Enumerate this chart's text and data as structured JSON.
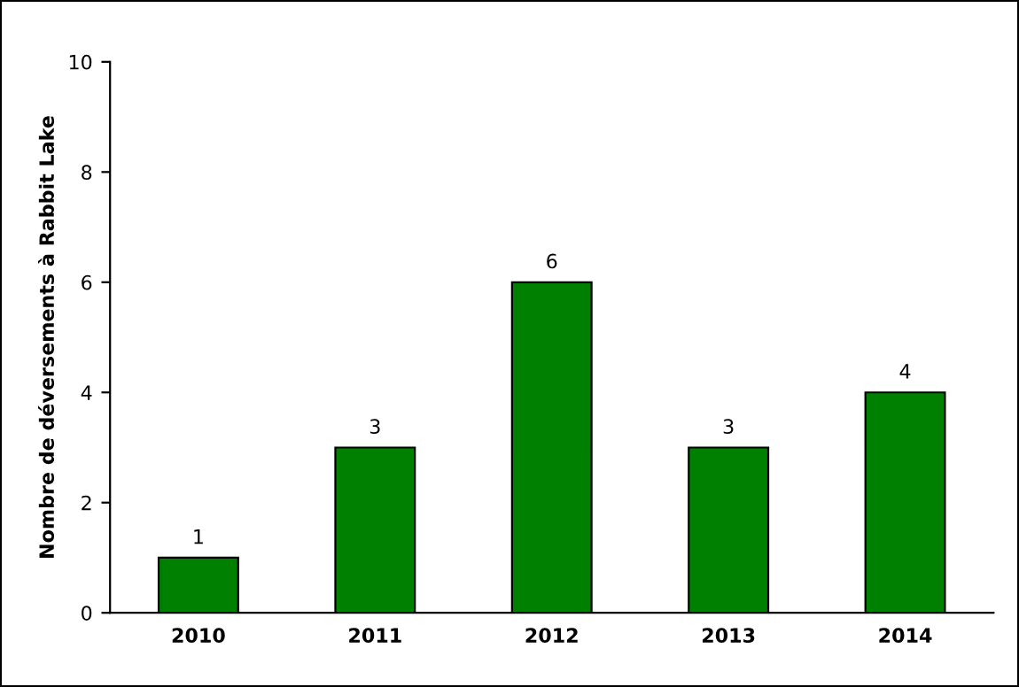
{
  "chart_data": {
    "type": "bar",
    "ylabel": "Nombre de déversements à Rabbit Lake",
    "categories": [
      "2010",
      "2011",
      "2012",
      "2013",
      "2014"
    ],
    "values": [
      1,
      3,
      6,
      3,
      4
    ],
    "color": "#008000",
    "ylim": [
      0,
      10
    ],
    "yticks": [
      0,
      2,
      4,
      6,
      8,
      10
    ],
    "grid": false,
    "data_labels": true,
    "legend": false
  }
}
